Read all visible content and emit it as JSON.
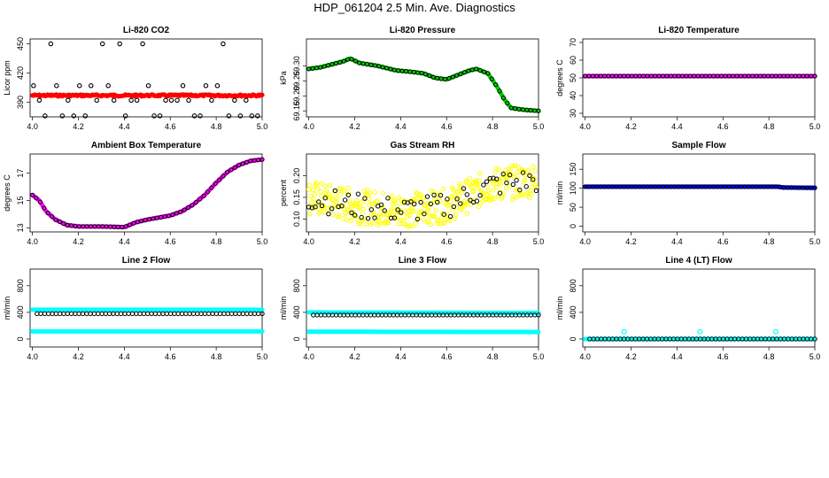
{
  "title": "HDP_061204  2.5 Min. Ave. Diagnostics",
  "colors": {
    "frame": "#000000",
    "red": "#ff0000",
    "green": "#00cc00",
    "magenta": "#ff00ff",
    "yellow": "#ffff00",
    "blue": "#0000ff",
    "cyan": "#00ffff",
    "black": "#000000"
  },
  "chart_data": [
    {
      "type": "scatter",
      "title": "Li-820 CO2",
      "ylabel": "Licor ppm",
      "xlim": [
        3.99,
        5.0
      ],
      "ylim": [
        375,
        455
      ],
      "xticks": [
        "4.0",
        "4.2",
        "4.4",
        "4.6",
        "4.8",
        "5.0"
      ],
      "yticks": [
        "360",
        "390",
        "420",
        "450"
      ],
      "series": [
        {
          "name": "raw",
          "color": "red",
          "kind": "band",
          "x0": 4.0,
          "x1": 5.0,
          "y": 397
        },
        {
          "name": "avg",
          "color": "black",
          "kind": "levels",
          "levels": [
            376,
            392,
            407,
            450
          ],
          "count": 40
        }
      ]
    },
    {
      "type": "line",
      "title": "Li-820 Pressure",
      "ylabel": "kPa",
      "xlim": [
        3.99,
        5.0
      ],
      "ylim": [
        69.13,
        69.39
      ],
      "xticks": [
        "4.0",
        "4.2",
        "4.4",
        "4.6",
        "4.8",
        "5.0"
      ],
      "yticks": [
        "69.15",
        "69.20",
        "69.25",
        "69.30"
      ],
      "series": [
        {
          "name": "raw",
          "color": "green",
          "kind": "curve",
          "x": [
            4.0,
            4.05,
            4.1,
            4.15,
            4.18,
            4.22,
            4.3,
            4.38,
            4.45,
            4.5,
            4.55,
            4.6,
            4.65,
            4.7,
            4.73,
            4.78,
            4.82,
            4.85,
            4.88,
            4.92,
            4.96,
            5.0
          ],
          "y": [
            69.29,
            69.295,
            69.305,
            69.315,
            69.325,
            69.31,
            69.3,
            69.285,
            69.28,
            69.275,
            69.26,
            69.255,
            69.27,
            69.285,
            69.29,
            69.275,
            69.23,
            69.19,
            69.16,
            69.155,
            69.152,
            69.15
          ]
        },
        {
          "name": "avg",
          "color": "black",
          "kind": "sampled",
          "count": 60
        }
      ]
    },
    {
      "type": "line",
      "title": "Li-820 Temperature",
      "ylabel": "degrees C",
      "xlim": [
        3.99,
        5.0
      ],
      "ylim": [
        28,
        72
      ],
      "xticks": [
        "4.0",
        "4.2",
        "4.4",
        "4.6",
        "4.8",
        "5.0"
      ],
      "yticks": [
        "30",
        "40",
        "50",
        "60",
        "70"
      ],
      "series": [
        {
          "name": "raw",
          "color": "magenta",
          "kind": "curve",
          "x": [
            4.0,
            5.0
          ],
          "y": [
            51,
            51
          ]
        },
        {
          "name": "avg",
          "color": "black",
          "kind": "sampled",
          "count": 60
        }
      ]
    },
    {
      "type": "line",
      "title": "Ambient Box Temperature",
      "ylabel": "degrees C",
      "xlim": [
        3.99,
        5.0
      ],
      "ylim": [
        12.7,
        18.4
      ],
      "xticks": [
        "4.0",
        "4.2",
        "4.4",
        "4.6",
        "4.8",
        "5.0"
      ],
      "yticks": [
        "13",
        "15",
        "17"
      ],
      "series": [
        {
          "name": "raw",
          "color": "magenta",
          "kind": "curve",
          "x": [
            4.0,
            4.03,
            4.06,
            4.1,
            4.15,
            4.2,
            4.3,
            4.4,
            4.45,
            4.5,
            4.6,
            4.65,
            4.7,
            4.75,
            4.8,
            4.85,
            4.9,
            4.95,
            5.0
          ],
          "y": [
            15.4,
            15.0,
            14.2,
            13.6,
            13.2,
            13.1,
            13.1,
            13.05,
            13.4,
            13.6,
            13.9,
            14.2,
            14.7,
            15.4,
            16.3,
            17.1,
            17.6,
            17.9,
            18.0
          ]
        },
        {
          "name": "avg",
          "color": "black",
          "kind": "sampled",
          "count": 60
        }
      ]
    },
    {
      "type": "scatter",
      "title": "Gas Stream RH",
      "ylabel": "percent",
      "xlim": [
        3.99,
        5.0
      ],
      "ylim": [
        0.07,
        0.25
      ],
      "xticks": [
        "4.0",
        "4.2",
        "4.4",
        "4.6",
        "4.8",
        "5.0"
      ],
      "yticks": [
        "0.10",
        "0.15",
        "0.20"
      ],
      "series": [
        {
          "name": "raw",
          "color": "yellow",
          "kind": "noisy",
          "x": [
            4.0,
            4.2,
            4.4,
            4.6,
            4.8,
            5.0
          ],
          "y": [
            0.15,
            0.13,
            0.12,
            0.13,
            0.18,
            0.19
          ],
          "spread": 0.04,
          "count": 380
        },
        {
          "name": "avg",
          "color": "black",
          "kind": "noisy",
          "x": [
            4.0,
            4.2,
            4.4,
            4.6,
            4.8,
            5.0
          ],
          "y": [
            0.15,
            0.13,
            0.12,
            0.13,
            0.18,
            0.19
          ],
          "spread": 0.03,
          "count": 70
        }
      ]
    },
    {
      "type": "line",
      "title": "Sample Flow",
      "ylabel": "ml/min",
      "xlim": [
        3.99,
        5.0
      ],
      "ylim": [
        -15,
        190
      ],
      "xticks": [
        "4.0",
        "4.2",
        "4.4",
        "4.6",
        "4.8",
        "5.0"
      ],
      "yticks": [
        "0",
        "50",
        "100",
        "150"
      ],
      "series": [
        {
          "name": "raw",
          "color": "blue",
          "kind": "curve",
          "x": [
            4.0,
            4.84,
            4.86,
            5.0
          ],
          "y": [
            104,
            104,
            102,
            101
          ]
        },
        {
          "name": "avg",
          "color": "black",
          "kind": "sampled",
          "count": 60
        }
      ]
    },
    {
      "type": "line",
      "title": "Line 2 Flow",
      "ylabel": "ml/min",
      "xlim": [
        3.99,
        5.0
      ],
      "ylim": [
        -120,
        1050
      ],
      "xticks": [
        "4.0",
        "4.2",
        "4.4",
        "4.6",
        "4.8",
        "5.0"
      ],
      "yticks": [
        "0",
        "400",
        "800"
      ],
      "series": [
        {
          "name": "raw-high",
          "color": "cyan",
          "kind": "curve",
          "x": [
            4.0,
            5.0
          ],
          "y": [
            440,
            440
          ]
        },
        {
          "name": "raw-low",
          "color": "cyan",
          "kind": "curve",
          "x": [
            4.0,
            5.0
          ],
          "y": [
            115,
            115
          ]
        },
        {
          "name": "avg",
          "color": "black",
          "kind": "points",
          "x0": 4.02,
          "x1": 5.0,
          "y": 380,
          "count": 60
        }
      ]
    },
    {
      "type": "line",
      "title": "Line 3 Flow",
      "ylabel": "ml/min",
      "xlim": [
        3.99,
        5.0
      ],
      "ylim": [
        -120,
        1050
      ],
      "xticks": [
        "4.0",
        "4.2",
        "4.4",
        "4.6",
        "4.8",
        "5.0"
      ],
      "yticks": [
        "0",
        "400",
        "800"
      ],
      "series": [
        {
          "name": "raw-high",
          "color": "cyan",
          "kind": "curve",
          "x": [
            4.0,
            5.0
          ],
          "y": [
            400,
            390
          ]
        },
        {
          "name": "raw-low",
          "color": "cyan",
          "kind": "curve",
          "x": [
            4.0,
            5.0
          ],
          "y": [
            110,
            105
          ]
        },
        {
          "name": "avg",
          "color": "black",
          "kind": "points",
          "x0": 4.02,
          "x1": 5.0,
          "y": 360,
          "count": 60
        }
      ]
    },
    {
      "type": "scatter",
      "title": "Line 4 (LT) Flow",
      "ylabel": "ml/min",
      "xlim": [
        3.99,
        5.0
      ],
      "ylim": [
        -120,
        1050
      ],
      "xticks": [
        "4.0",
        "4.2",
        "4.4",
        "4.6",
        "4.8",
        "5.0"
      ],
      "yticks": [
        "0",
        "400",
        "800"
      ],
      "series": [
        {
          "name": "raw",
          "color": "cyan",
          "kind": "curve",
          "x": [
            4.0,
            5.0
          ],
          "y": [
            0,
            0
          ]
        },
        {
          "name": "spikes",
          "color": "cyan",
          "kind": "marks",
          "x": [
            4.17,
            4.5,
            4.83
          ],
          "y": [
            110,
            110,
            110
          ]
        },
        {
          "name": "avg",
          "color": "black",
          "kind": "points",
          "x0": 4.02,
          "x1": 5.0,
          "y": 0,
          "count": 60
        }
      ]
    }
  ]
}
